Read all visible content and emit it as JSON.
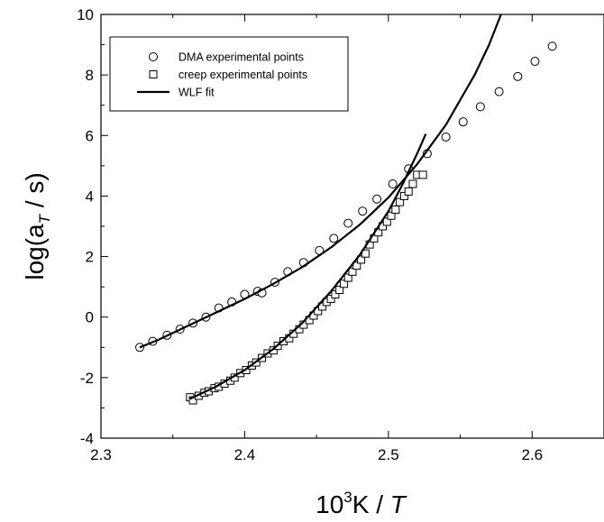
{
  "chart_data": {
    "type": "scatter",
    "xlabel": {
      "base": "10",
      "sup": "3",
      "unit": "K / ",
      "var": "T"
    },
    "ylabel": {
      "prefix": "log(a",
      "sub": "T",
      "suffix": " / s)"
    },
    "xlim": [
      2.3,
      2.65
    ],
    "ylim": [
      -4,
      10
    ],
    "x_ticks": [
      2.3,
      2.4,
      2.5,
      2.6
    ],
    "x_tick_labels": [
      "2.3",
      "2.4",
      "2.5",
      "2.6"
    ],
    "y_ticks": [
      -4,
      -2,
      0,
      2,
      4,
      6,
      8,
      10
    ],
    "y_tick_labels": [
      "-4",
      "-2",
      "0",
      "2",
      "4",
      "6",
      "8",
      "10"
    ],
    "grid": false,
    "legend_position": "top-left",
    "series": [
      {
        "name": "DMA experimental points",
        "marker": "circle",
        "x": [
          2.327,
          2.336,
          2.346,
          2.355,
          2.364,
          2.373,
          2.382,
          2.391,
          2.4,
          2.409,
          2.412,
          2.421,
          2.43,
          2.441,
          2.452,
          2.462,
          2.472,
          2.482,
          2.492,
          2.503,
          2.514,
          2.527,
          2.54,
          2.552,
          2.564,
          2.577,
          2.59,
          2.602,
          2.614
        ],
        "y": [
          -1.0,
          -0.8,
          -0.6,
          -0.4,
          -0.2,
          0.0,
          0.3,
          0.5,
          0.75,
          0.85,
          0.8,
          1.15,
          1.5,
          1.8,
          2.2,
          2.6,
          3.1,
          3.5,
          3.9,
          4.4,
          4.9,
          5.4,
          5.95,
          6.45,
          6.95,
          7.45,
          7.95,
          8.45,
          8.95
        ]
      },
      {
        "name": "creep experimental points",
        "marker": "square",
        "x": [
          2.362,
          2.364,
          2.368,
          2.372,
          2.375,
          2.379,
          2.382,
          2.386,
          2.39,
          2.393,
          2.397,
          2.401,
          2.405,
          2.408,
          2.412,
          2.416,
          2.42,
          2.423,
          2.427,
          2.431,
          2.434,
          2.438,
          2.441,
          2.445,
          2.448,
          2.451,
          2.454,
          2.457,
          2.46,
          2.463,
          2.466,
          2.469,
          2.472,
          2.475,
          2.478,
          2.481,
          2.484,
          2.487,
          2.49,
          2.493,
          2.496,
          2.499,
          2.502,
          2.505,
          2.508,
          2.511,
          2.514,
          2.517,
          2.52,
          2.524
        ],
        "y": [
          -2.65,
          -2.75,
          -2.6,
          -2.5,
          -2.45,
          -2.35,
          -2.3,
          -2.2,
          -2.1,
          -2.0,
          -1.85,
          -1.75,
          -1.6,
          -1.5,
          -1.35,
          -1.2,
          -1.1,
          -0.95,
          -0.8,
          -0.7,
          -0.55,
          -0.4,
          -0.25,
          -0.1,
          0.05,
          0.2,
          0.35,
          0.5,
          0.6,
          0.75,
          0.9,
          1.1,
          1.3,
          1.5,
          1.7,
          1.9,
          2.1,
          2.4,
          2.6,
          2.8,
          3.0,
          3.15,
          3.35,
          3.55,
          3.8,
          4.0,
          4.15,
          4.4,
          4.7,
          4.7
        ]
      },
      {
        "name": "WLF fit",
        "marker": "line",
        "x": [
          2.327,
          2.34,
          2.36,
          2.38,
          2.4,
          2.42,
          2.44,
          2.46,
          2.48,
          2.5,
          2.52,
          2.54,
          2.56,
          2.57,
          2.58,
          2.584
        ],
        "y": [
          -1.0,
          -0.75,
          -0.3,
          0.15,
          0.6,
          1.1,
          1.65,
          2.3,
          3.05,
          3.95,
          5.05,
          6.35,
          8.0,
          9.0,
          10.2,
          10.7
        ]
      },
      {
        "name": "",
        "marker": "line",
        "x": [
          2.362,
          2.38,
          2.4,
          2.42,
          2.44,
          2.46,
          2.48,
          2.5,
          2.51,
          2.52,
          2.526
        ],
        "y": [
          -2.7,
          -2.3,
          -1.75,
          -1.05,
          -0.2,
          0.85,
          2.05,
          3.5,
          4.4,
          5.4,
          6.05
        ]
      }
    ]
  }
}
